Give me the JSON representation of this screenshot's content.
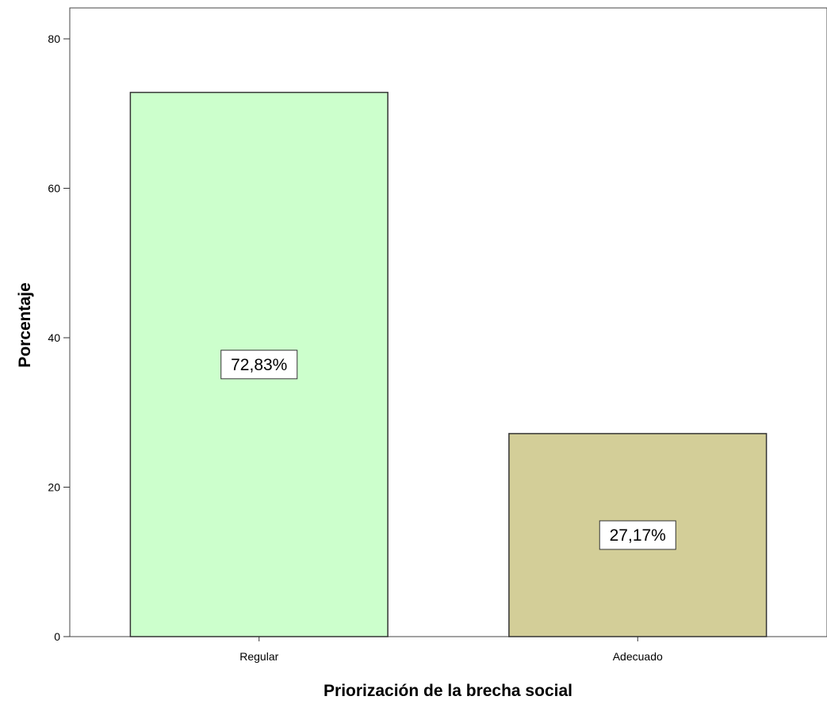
{
  "chart_data": {
    "type": "bar",
    "title": "",
    "xlabel": "Priorización de la brecha social",
    "ylabel": "Porcentaje",
    "categories": [
      "Regular",
      "Adecuado"
    ],
    "values": [
      72.83,
      27.17
    ],
    "data_labels": [
      "72,83%",
      "27,17%"
    ],
    "bar_colors": [
      "#ccffcc",
      "#d3ce98"
    ],
    "ylim": [
      0,
      80
    ],
    "y_ticks": [
      0,
      20,
      40,
      60,
      80
    ],
    "y_tick_labels": [
      "0",
      "20",
      "40",
      "60",
      "80"
    ],
    "grid": false,
    "legend": "none"
  }
}
